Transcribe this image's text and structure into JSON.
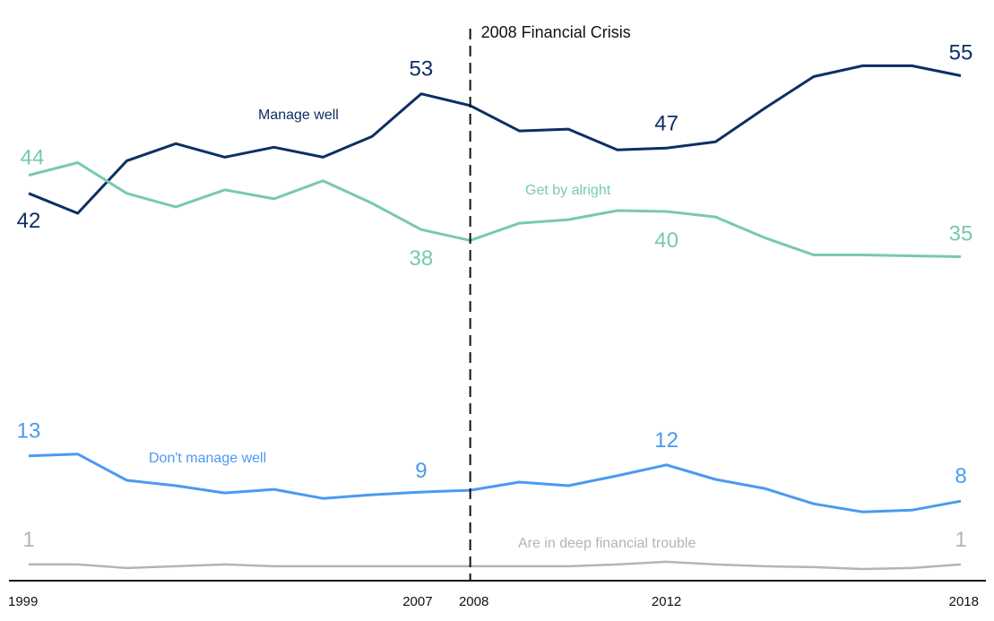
{
  "chart_data": {
    "type": "line",
    "title": "",
    "xlabel": "",
    "ylabel": "",
    "x": [
      1999,
      2000,
      2001,
      2002,
      2003,
      2004,
      2005,
      2006,
      2007,
      2008,
      2009,
      2010,
      2011,
      2012,
      2013,
      2014,
      2015,
      2016,
      2017,
      2018
    ],
    "xticks": [
      "1999",
      "2007",
      "2008",
      "2012",
      "2018"
    ],
    "ylim": [
      0,
      60
    ],
    "grid": false,
    "annotation": {
      "x": 2008,
      "label": "2008 Financial Crisis",
      "style": "dashed-vertical-line"
    },
    "series": [
      {
        "name": "Manage well",
        "color": "#0d2f63",
        "values": [
          42,
          39.8,
          45.6,
          47.5,
          46.0,
          47.1,
          46.0,
          48.3,
          53,
          51.7,
          48.9,
          49.1,
          46.8,
          47,
          47.7,
          51.4,
          54.9,
          56.1,
          56.1,
          55
        ],
        "point_labels": [
          {
            "x": 1999,
            "text": "42"
          },
          {
            "x": 2007,
            "text": "53"
          },
          {
            "x": 2012,
            "text": "47"
          },
          {
            "x": 2018,
            "text": "55"
          }
        ]
      },
      {
        "name": "Get by alright",
        "color": "#78c8b4",
        "values": [
          44,
          45.4,
          42.0,
          40.5,
          42.4,
          41.4,
          43.4,
          40.9,
          38,
          36.8,
          38.7,
          39.1,
          40.1,
          40,
          39.4,
          37.1,
          35.2,
          35.2,
          35.1,
          35
        ],
        "point_labels": [
          {
            "x": 1999,
            "text": "44"
          },
          {
            "x": 2007,
            "text": "38"
          },
          {
            "x": 2012,
            "text": "40"
          },
          {
            "x": 2018,
            "text": "35"
          }
        ]
      },
      {
        "name": "Don't manage well",
        "color": "#4a9af0",
        "values": [
          13,
          13.2,
          10.3,
          9.7,
          8.9,
          9.3,
          8.3,
          8.7,
          9,
          9.2,
          10.1,
          9.7,
          10.8,
          12,
          10.4,
          9.4,
          7.7,
          6.8,
          7.0,
          8
        ],
        "point_labels": [
          {
            "x": 1999,
            "text": "13"
          },
          {
            "x": 2007,
            "text": "9"
          },
          {
            "x": 2012,
            "text": "12"
          },
          {
            "x": 2018,
            "text": "8"
          }
        ]
      },
      {
        "name": "Are in deep financial trouble",
        "color": "#b4b4b4",
        "values": [
          1,
          1,
          0.6,
          0.8,
          1,
          0.8,
          0.8,
          0.8,
          0.8,
          0.8,
          0.8,
          0.8,
          1,
          1.3,
          1,
          0.8,
          0.7,
          0.5,
          0.6,
          1
        ],
        "point_labels": [
          {
            "x": 1999,
            "text": "1"
          },
          {
            "x": 2018,
            "text": "1"
          }
        ]
      }
    ]
  }
}
